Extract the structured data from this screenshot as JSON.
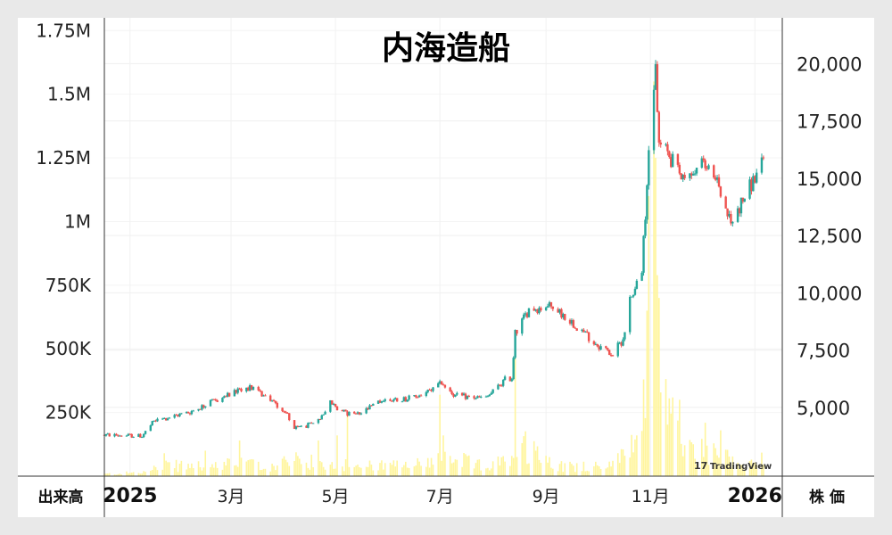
{
  "chart_data": {
    "type": "candlestick",
    "title": "内海造船",
    "left_axis": {
      "name": "出来高",
      "ticks": [
        {
          "value": 250000,
          "label": "250K"
        },
        {
          "value": 500000,
          "label": "500K"
        },
        {
          "value": 750000,
          "label": "750K"
        },
        {
          "value": 1000000,
          "label": "1M"
        },
        {
          "value": 1250000,
          "label": "1.25M"
        },
        {
          "value": 1500000,
          "label": "1.5M"
        },
        {
          "value": 1750000,
          "label": "1.75M"
        }
      ],
      "range": [
        0,
        1800000
      ]
    },
    "right_axis": {
      "name": "株 価",
      "ticks": [
        {
          "value": 5000,
          "label": "5,000"
        },
        {
          "value": 7500,
          "label": "7,500"
        },
        {
          "value": 10000,
          "label": "10,000"
        },
        {
          "value": 12500,
          "label": "12,500"
        },
        {
          "value": 15000,
          "label": "15,000"
        },
        {
          "value": 17500,
          "label": "17,500"
        },
        {
          "value": 20000,
          "label": "20,000"
        }
      ],
      "range": [
        2000,
        22000
      ]
    },
    "x_axis": {
      "range": [
        "2024-12-17",
        "2026-01-17"
      ],
      "ticks": [
        {
          "date": "2025-01-01",
          "label": "2025",
          "bold": true
        },
        {
          "date": "2025-03-01",
          "label": "3月",
          "bold": false
        },
        {
          "date": "2025-05-01",
          "label": "5月",
          "bold": false
        },
        {
          "date": "2025-07-01",
          "label": "7月",
          "bold": false
        },
        {
          "date": "2025-09-01",
          "label": "9月",
          "bold": false
        },
        {
          "date": "2025-11-01",
          "label": "11月",
          "bold": false
        },
        {
          "date": "2026-01-01",
          "label": "2026",
          "bold": true
        }
      ]
    },
    "colors": {
      "up": "#26a69a",
      "down": "#ef5350",
      "volume": "#fff59d"
    },
    "grid": true,
    "price_anchors": [
      [
        "2024-12-17",
        3800
      ],
      [
        "2025-01-08",
        3750
      ],
      [
        "2025-01-15",
        4400
      ],
      [
        "2025-02-05",
        4800
      ],
      [
        "2025-02-20",
        5300
      ],
      [
        "2025-03-05",
        5700
      ],
      [
        "2025-03-12",
        5900
      ],
      [
        "2025-03-25",
        5300
      ],
      [
        "2025-04-03",
        4700
      ],
      [
        "2025-04-07",
        4100
      ],
      [
        "2025-04-20",
        4300
      ],
      [
        "2025-04-28",
        5200
      ],
      [
        "2025-05-08",
        4700
      ],
      [
        "2025-05-15",
        4700
      ],
      [
        "2025-05-28",
        5300
      ],
      [
        "2025-06-15",
        5400
      ],
      [
        "2025-06-28",
        5800
      ],
      [
        "2025-07-02",
        6100
      ],
      [
        "2025-07-10",
        5500
      ],
      [
        "2025-07-28",
        5400
      ],
      [
        "2025-08-08",
        6200
      ],
      [
        "2025-08-12",
        6300
      ],
      [
        "2025-08-14",
        8200
      ],
      [
        "2025-08-22",
        9300
      ],
      [
        "2025-09-05",
        9400
      ],
      [
        "2025-09-20",
        8500
      ],
      [
        "2025-09-30",
        7800
      ],
      [
        "2025-10-10",
        7300
      ],
      [
        "2025-10-16",
        8000
      ],
      [
        "2025-10-20",
        9700
      ],
      [
        "2025-10-27",
        11000
      ],
      [
        "2025-10-31",
        16000
      ],
      [
        "2025-11-04",
        19700
      ],
      [
        "2025-11-06",
        16500
      ],
      [
        "2025-11-12",
        16000
      ],
      [
        "2025-11-20",
        14800
      ],
      [
        "2025-12-01",
        15600
      ],
      [
        "2025-12-10",
        14800
      ],
      [
        "2025-12-18",
        13000
      ],
      [
        "2025-12-26",
        14200
      ],
      [
        "2026-01-06",
        15700
      ]
    ],
    "volume_anchors": [
      [
        "2024-12-17",
        8000
      ],
      [
        "2025-01-10",
        15000
      ],
      [
        "2025-01-20",
        40000
      ],
      [
        "2025-02-10",
        40000
      ],
      [
        "2025-03-10",
        50000
      ],
      [
        "2025-03-20",
        35000
      ],
      [
        "2025-04-07",
        60000
      ],
      [
        "2025-04-30",
        45000
      ],
      [
        "2025-05-25",
        40000
      ],
      [
        "2025-06-15",
        40000
      ],
      [
        "2025-07-02",
        80000
      ],
      [
        "2025-07-25",
        40000
      ],
      [
        "2025-08-13",
        60000
      ],
      [
        "2025-08-20",
        120000
      ],
      [
        "2025-09-10",
        40000
      ],
      [
        "2025-10-10",
        40000
      ],
      [
        "2025-10-25",
        180000
      ],
      [
        "2025-11-03",
        1000000
      ],
      [
        "2025-11-10",
        250000
      ],
      [
        "2025-11-20",
        120000
      ],
      [
        "2025-12-10",
        80000
      ],
      [
        "2025-12-25",
        50000
      ],
      [
        "2026-01-06",
        60000
      ]
    ],
    "volume_spikes": [
      [
        "2025-01-21",
        90000
      ],
      [
        "2025-02-14",
        100000
      ],
      [
        "2025-03-06",
        140000
      ],
      [
        "2025-04-21",
        140000
      ],
      [
        "2025-05-02",
        160000
      ],
      [
        "2025-05-08",
        250000
      ],
      [
        "2025-07-01",
        320000
      ],
      [
        "2025-07-03",
        160000
      ],
      [
        "2025-08-14",
        500000
      ],
      [
        "2025-09-01",
        80000
      ],
      [
        "2025-10-24",
        160000
      ],
      [
        "2025-10-28",
        380000
      ],
      [
        "2025-10-30",
        650000
      ],
      [
        "2025-10-31",
        1100000
      ],
      [
        "2025-11-03",
        1550000
      ],
      [
        "2025-11-04",
        1250000
      ],
      [
        "2025-11-06",
        700000
      ],
      [
        "2025-11-18",
        300000
      ],
      [
        "2025-12-03",
        210000
      ],
      [
        "2025-12-12",
        180000
      ]
    ]
  },
  "watermark": {
    "text": "TradingView",
    "logo": "17"
  }
}
